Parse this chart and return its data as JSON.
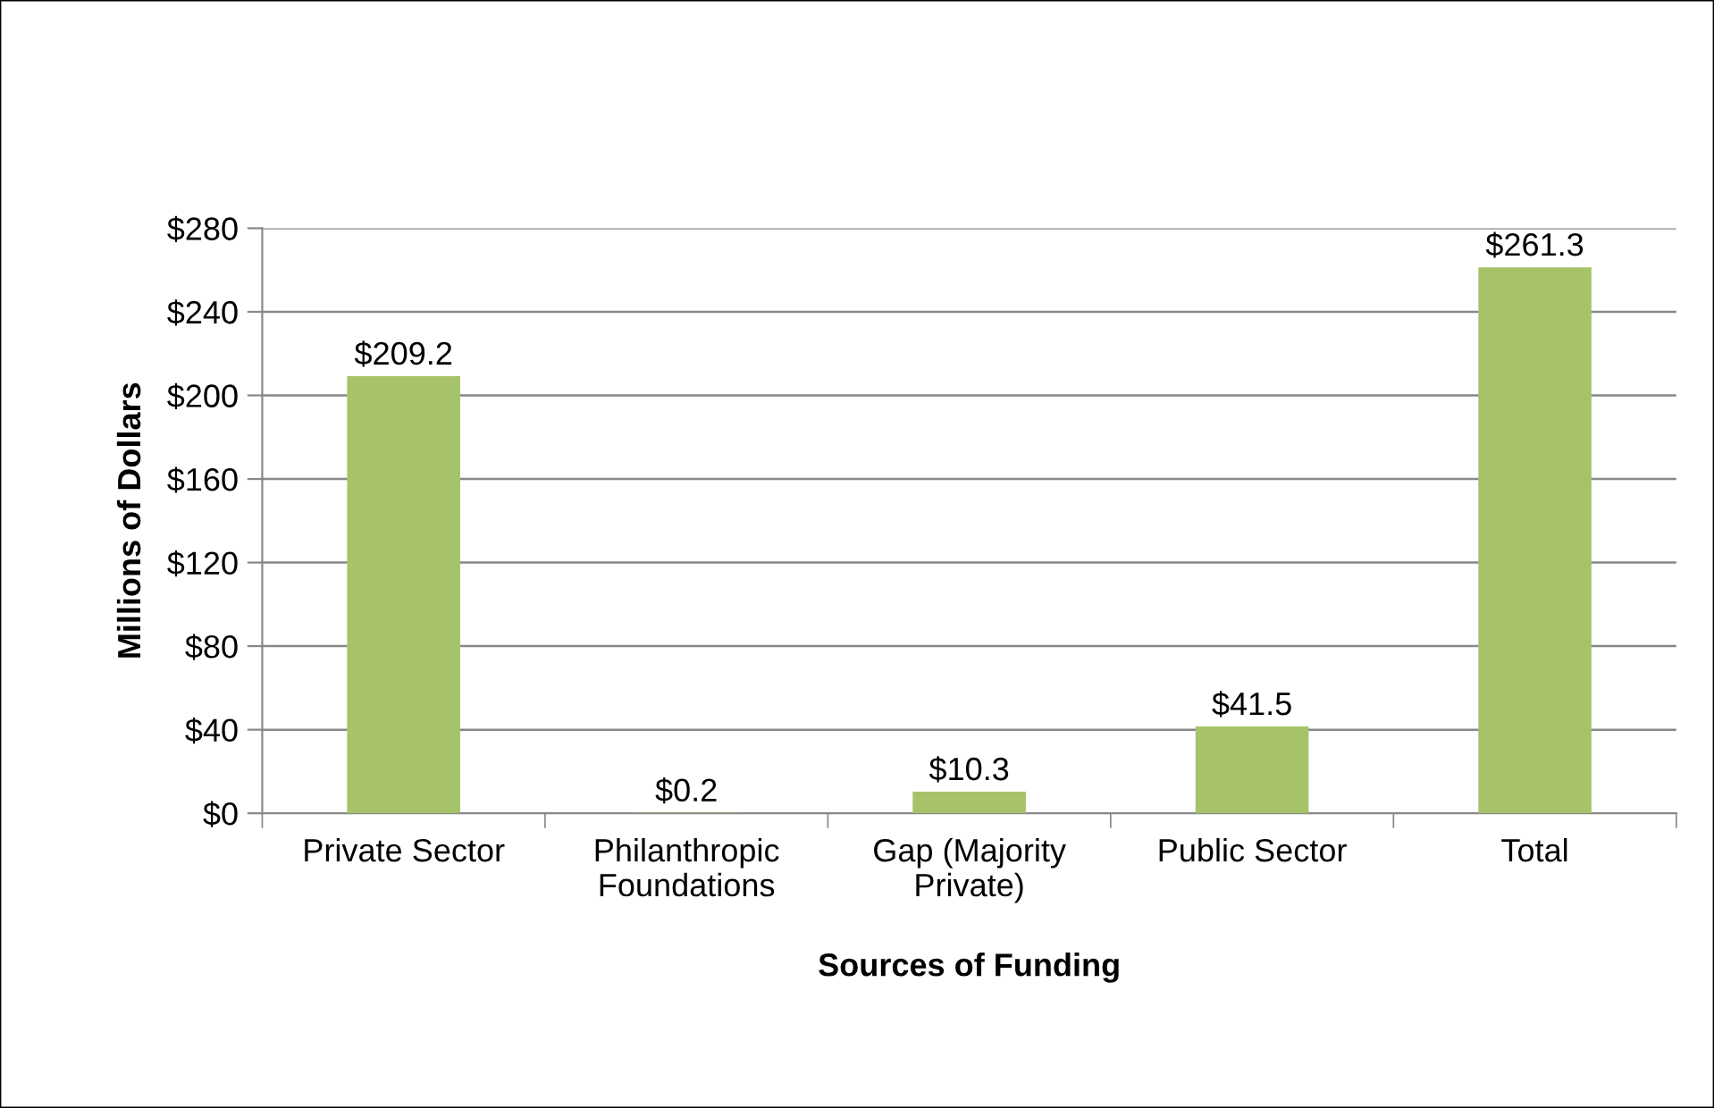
{
  "chart_data": {
    "type": "bar",
    "xlabel": "Sources of Funding",
    "ylabel": "Millions of Dollars",
    "categories": [
      "Private Sector",
      "Philanthropic\nFoundations",
      "Gap (Majority\nPrivate)",
      "Public Sector",
      "Total"
    ],
    "values": [
      209.2,
      0.2,
      10.3,
      41.5,
      261.3
    ],
    "value_labels": [
      "$209.2",
      "$0.2",
      "$10.3",
      "$41.5",
      "$261.3"
    ],
    "color": "#a6c36a",
    "ylim": [
      0,
      280
    ],
    "yticks": [
      {
        "value": 0,
        "label": "$0"
      },
      {
        "value": 40,
        "label": "$40"
      },
      {
        "value": 80,
        "label": "$80"
      },
      {
        "value": 120,
        "label": "$120"
      },
      {
        "value": 160,
        "label": "$160"
      },
      {
        "value": 200,
        "label": "$200"
      },
      {
        "value": 240,
        "label": "$240"
      },
      {
        "value": 280,
        "label": "$280"
      }
    ],
    "grid": "y",
    "legend": false
  }
}
